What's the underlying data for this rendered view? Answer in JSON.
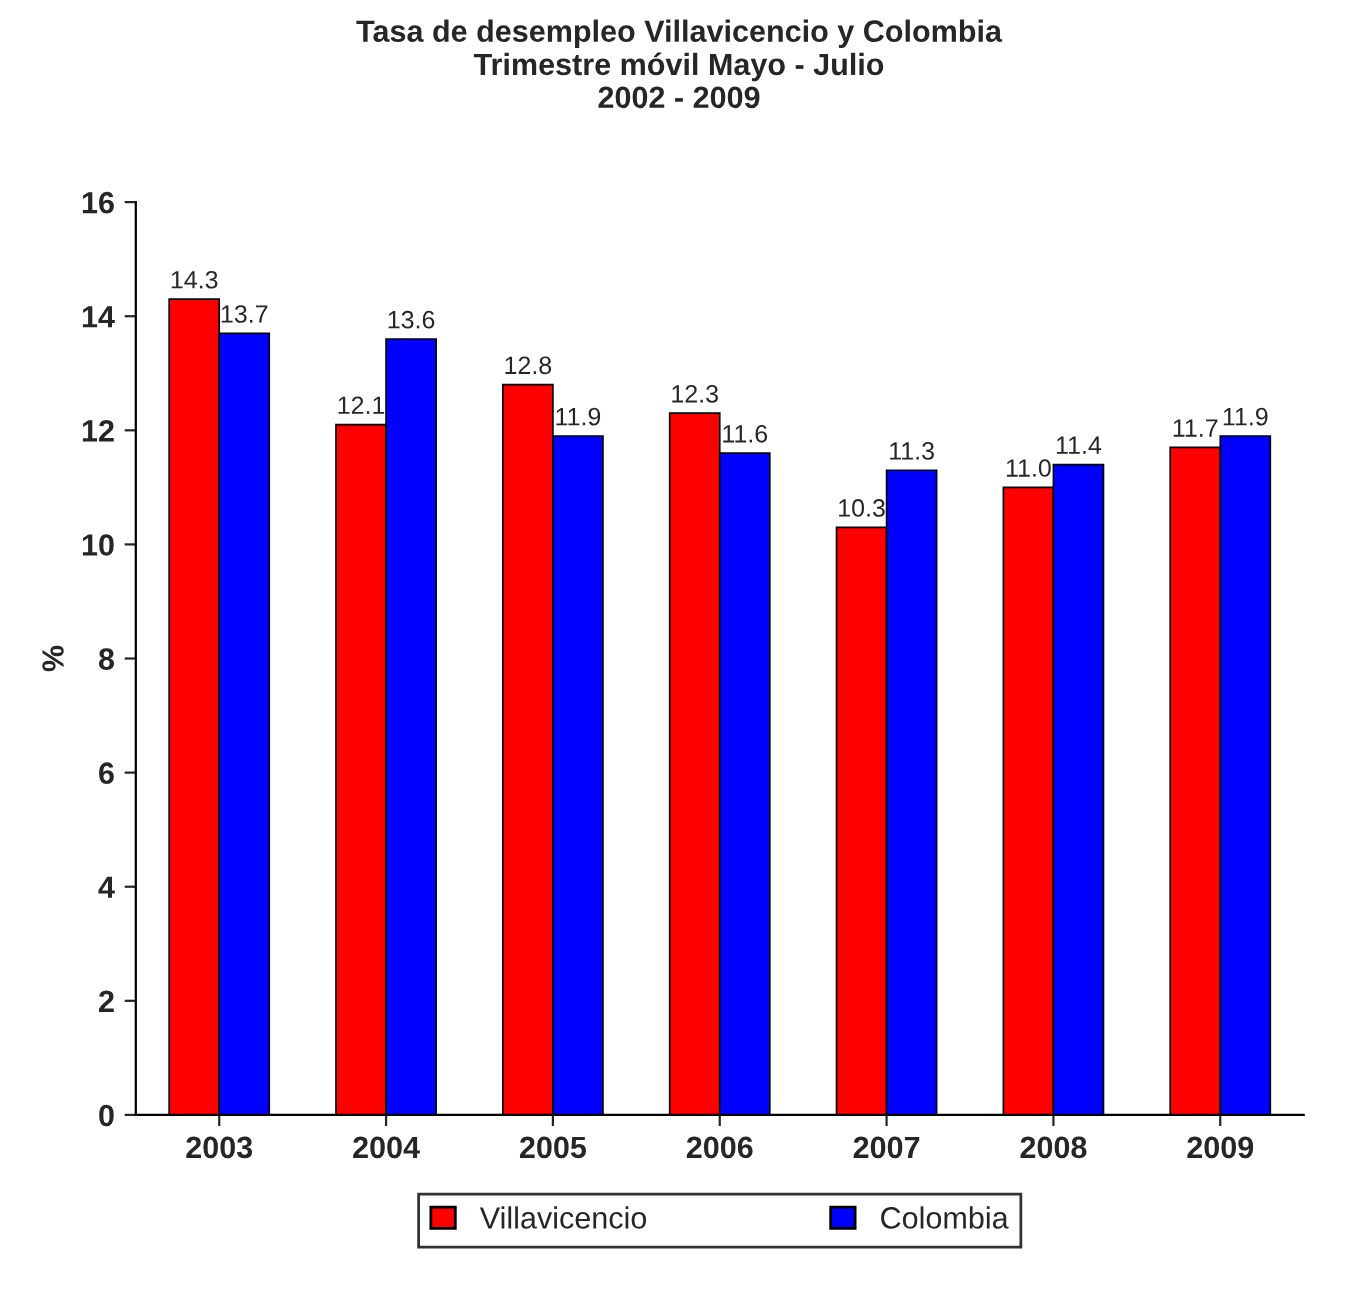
{
  "chart_data": {
    "type": "bar",
    "title": "Tasa de desempleo Villavicencio y Colombia\nTrimestre móvil Mayo - Julio\n2002 - 2009",
    "ylabel": "%",
    "categories": [
      "2003",
      "2004",
      "2005",
      "2006",
      "2007",
      "2008",
      "2009"
    ],
    "series": [
      {
        "name": "Villavicencio",
        "color": "#ff0000",
        "values": [
          14.3,
          12.1,
          12.8,
          12.3,
          10.3,
          11.0,
          11.7
        ],
        "value_labels": [
          "14.3",
          "12.1",
          "12.8",
          "12.3",
          "10.3",
          "11.0",
          "11.7"
        ]
      },
      {
        "name": "Colombia",
        "color": "#0000ff",
        "values": [
          13.7,
          13.6,
          11.9,
          11.6,
          11.3,
          11.4,
          11.9
        ],
        "value_labels": [
          "13.7",
          "13.6",
          "11.9",
          "11.6",
          "11.3",
          "11.4",
          "11.9"
        ]
      }
    ],
    "ylim": [
      0,
      16
    ],
    "yticks": [
      0,
      2,
      4,
      6,
      8,
      10,
      12,
      14,
      16
    ],
    "grid": false,
    "legend": "bottom"
  }
}
